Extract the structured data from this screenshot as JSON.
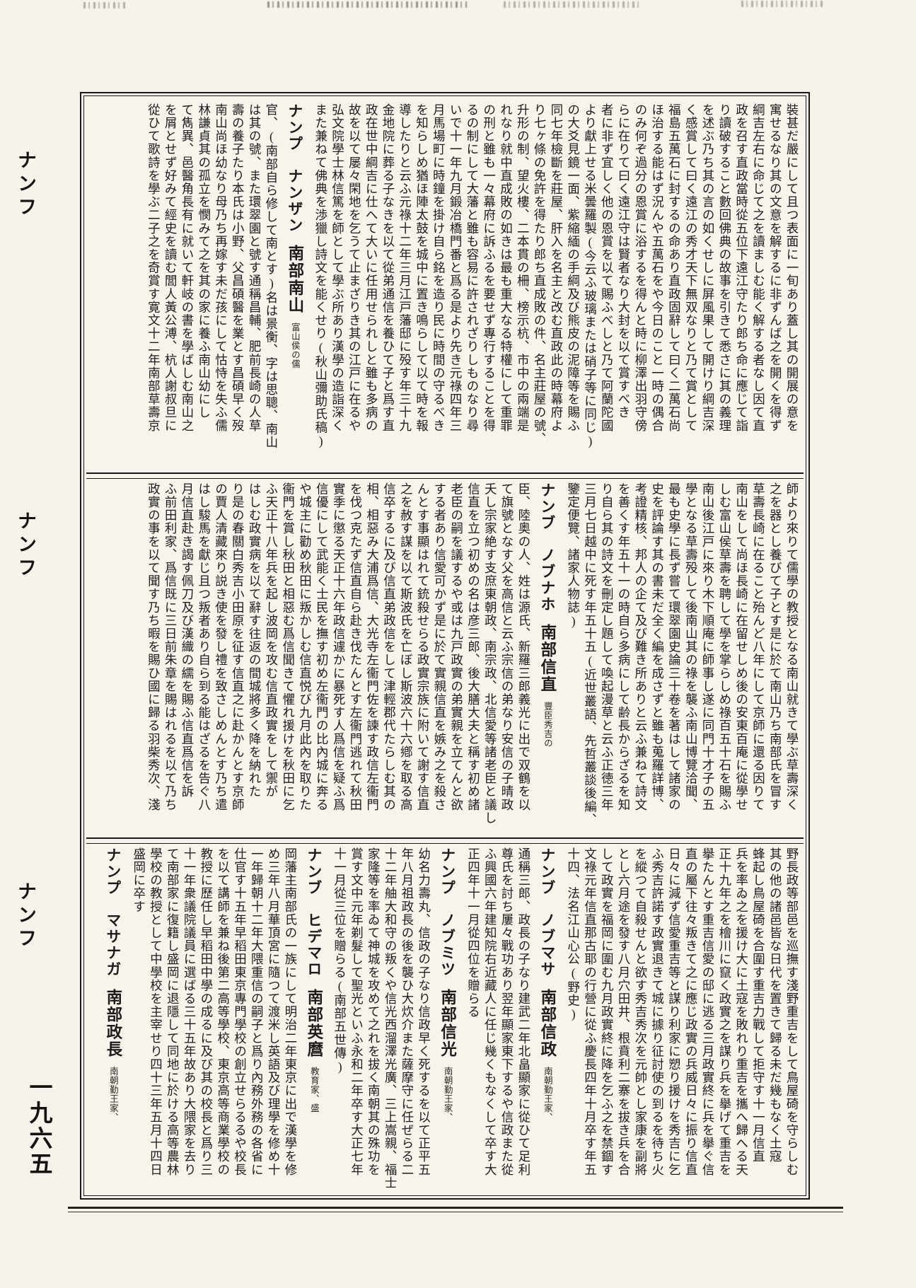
{
  "page": {
    "page_number": "一九六五",
    "margin_labels": [
      "ナンフ",
      "ナンフ",
      "ナンフ"
    ]
  },
  "sections": [
    {
      "columns": [
        {
          "type": "text",
          "text": "裝甚だ嚴にして且つ表面に一旬あり蓋し其の開展の意を"
        },
        {
          "type": "text",
          "text": "寓せるなり其の文意を解するに非ずんば之を開くを得ず"
        },
        {
          "type": "text",
          "text": "綱吉左右に命じて之を讀ましむ能く解する者なし因て直"
        },
        {
          "type": "text",
          "text": "政を召す直政當時從五位下遠江守たり郎ち命に應じて詣"
        },
        {
          "type": "text",
          "text": "り讀破すること數回佛典の故事を引きて悉さに其の義理"
        },
        {
          "type": "text",
          "text": "を述ぶ乃ち其の言の如くせしに屏風果して開けり綱吉深"
        },
        {
          "type": "text",
          "text": "く感賞して曰く遠江の秀才天下無双なりと乃て賞として"
        },
        {
          "type": "text",
          "text": "福島五萬石に封するの命あり直政固辭して曰く二萬石尚"
        },
        {
          "type": "text",
          "text": "ほ治する能はず況んや五萬石をや今日のこと一時の偶合"
        },
        {
          "type": "text",
          "text": "のみ何ぞ過分の恩賞に浴するを得んと時に柳澤出羽守傍"
        },
        {
          "type": "text",
          "text": "らに在りて曰く遠江守は賢者なり大封を以て賞すべき"
        },
        {
          "type": "text",
          "text": "者に非ず宜しく他の恩賞を以て賜ふべしと乃て阿蘭陀國"
        },
        {
          "type": "text",
          "text": "より獻上せる米曇羅製(今云ふ玻璃または硝子等に同じ)"
        },
        {
          "type": "text",
          "text": "の大爻見鏡一面、紫縮緬の手綱及び熊皮の泥障等を賜ふ"
        },
        {
          "type": "text",
          "text": "同七年檢斷を莊屋、肝入を名主と改む直政此の時幕府よ"
        },
        {
          "type": "text",
          "text": "り七ヶ條の免許を得たり郎ち直成敗の件、名主莊屋の號、"
        },
        {
          "type": "text",
          "text": "升形の制、望火樓、二本貫の柵、榜示杭、市中の兩端是"
        },
        {
          "type": "text",
          "text": "れなり就中直成敗の如きは最も重大なる特權にして重罪"
        },
        {
          "type": "text",
          "text": "の刑と雖も一々幕府に訴ふるを要せず專行することを得"
        },
        {
          "type": "text",
          "text": "るの制にして大藩と雖も容易に許されざりしものなり尋"
        },
        {
          "type": "text",
          "text": "いで十一年九月鍛冶橋門番と爲る是より先き元祿四年三"
        },
        {
          "type": "text",
          "text": "月馬場町に時鐘を掛け自ら銘を造り民に時間の守るべき"
        },
        {
          "type": "text",
          "text": "を知らしめ猶ほ陣太鼓を城中に置き鳴らして以て時を報"
        },
        {
          "type": "text",
          "text": "導したりと云ふ元祿十二年三月江戸藩邸に殁す年三十九"
        },
        {
          "type": "text",
          "text": "金地院に葬る子なきを以て從弟通信を養ひて子と爲す直"
        },
        {
          "type": "text",
          "text": "政在世中綱吉に仕へて大いに任用せられしと雖も多病の"
        },
        {
          "type": "text",
          "text": "故を以て屡々閑地を乞うて止まざりき其の江戸に在るや"
        },
        {
          "type": "text",
          "text": "弘文院學士林信篤を師として學ぶ所あり漢學の造詣深く"
        },
        {
          "type": "text",
          "text": "また兼ねて佛典を渉獵し詩文を能くせり(秋山彌助氏稿)"
        },
        {
          "type": "header",
          "reading": "ナンプ　ナンザン",
          "name": "南部南山",
          "descriptor": "富山侯の儒"
        },
        {
          "type": "text",
          "text": "官、(南部自ら修して南とす)名は景衡、字は思聰、南山"
        },
        {
          "type": "text",
          "text": "は其の號、また環翠園と號す通稱昌輔、肥前長崎の人草"
        },
        {
          "type": "text",
          "text": "壽の養子たり本氏は小野、父昌碩醫を業とす昌碩早く歿"
        },
        {
          "type": "text",
          "text": "南山尚ほ幼なり母乃ち再嫁す未だ孩にして怙恃を失ふ儒"
        },
        {
          "type": "text",
          "text": "林謙貞其の孤立を憫みて之を其の家に養ふ南山幼にし"
        },
        {
          "type": "text",
          "text": "て雋異、邑醫角長有に就いて軒岐の書を學ばしむ南山之"
        },
        {
          "type": "text",
          "text": "を屑とせず好みて經史を讀む閭人黃公溥、杭人謝叔旦に"
        },
        {
          "type": "text",
          "text": "從ひて歌詩を學ぶ二子之を奇賞す寛文十二年南部草壽京"
        }
      ]
    },
    {
      "columns": [
        {
          "type": "text",
          "text": "師より來りて儒學の教授となる南山就きて學ぶ草壽深く"
        },
        {
          "type": "text",
          "text": "之を器とし養びて子とす是に於て南山乃ち南部氏を冒す"
        },
        {
          "type": "text",
          "text": "草壽長崎に在ること殆んど八年にして京師に還る因りて"
        },
        {
          "type": "text",
          "text": "南山をして尚ほ長崎に在留せしめ後の安東百庵に從學せ"
        },
        {
          "type": "text",
          "text": "しむ富山侯草壽を聘して學を掌らしめ祿百五十石を賜ふ"
        },
        {
          "type": "text",
          "text": "南山後江戸に來り木下順庵に師事し遂に同門十才子の五"
        },
        {
          "type": "text",
          "text": "學となる草壽殁して後南山其の祿を襲ふ南山博覽洽聞、"
        },
        {
          "type": "text",
          "text": "最も史學に長ず嘗て環翠園史論三十卷を著はして諸家の"
        },
        {
          "type": "text",
          "text": "史を評論す其の書未だ全く編を成さずと雖も蒐羅詳博、"
        },
        {
          "type": "text",
          "text": "考證精核、邦人の企て及び難き所ありと云ふ兼ねて詩文"
        },
        {
          "type": "text",
          "text": "を善くす年五十一の時自ら多病にして齢長からざるを知"
        },
        {
          "type": "text",
          "text": "り自ら其の詩文を刪定し題して喚起漫草と云ふ正徳三年"
        },
        {
          "type": "text",
          "text": "三月七日越中に死す年五十五(近世叢語、先哲叢談後編、"
        },
        {
          "type": "text",
          "text": "鑒定便覽、諸家人物誌)",
          "short": true
        },
        {
          "type": "header",
          "reading": "ナンブ　ノブナホ",
          "name": "南部信直",
          "descriptor": "豐臣秀吉の"
        },
        {
          "type": "text",
          "text": "臣、陸奥の人、姓は源氏、新羅三郎義光に出で双鶴を以"
        },
        {
          "type": "text",
          "text": "て旗號となす父を高信と云ふ宗信の弟なり安信の子晴政"
        },
        {
          "type": "text",
          "text": "夭し宗家絶す支庶東朝政、南宗政、北信愛等諸老臣と議し"
        },
        {
          "type": "text",
          "text": "信直を立つ初めの名は彦三郎、後大膳大夫と稱す初め諸"
        },
        {
          "type": "text",
          "text": "老臣の嗣を議するや或は九戸政實の弟實親を立てんと欲"
        },
        {
          "type": "text",
          "text": "する者あり信愛可かず是に於て實親信直を嫉み之を殺さ"
        },
        {
          "type": "text",
          "text": "んとす事顯はれて銃殺せらる政實宗族に附いて謝す信直"
        },
        {
          "type": "text",
          "text": "之を赦す謀を以て斯波氏を亡ぼし斯波六十六鄕を取る高"
        },
        {
          "type": "text",
          "text": "信卒するに及び信直弟政信をして津輕郡代たらしむ其の"
        },
        {
          "type": "text",
          "text": "相、相惡み大浦爲信、大光寺左衞門佐を諫す政信左衞門"
        },
        {
          "type": "text",
          "text": "を伐つ克たず信直自ら赴き伐たんとす左衞門逃れて秋田"
        },
        {
          "type": "text",
          "text": "實季に懲る天正十六年政信遽かに暴死す人爲信を疑ふ爲"
        },
        {
          "type": "text",
          "text": "信優にして武能く士民を撫す初め左衞門の比內城に奔る"
        },
        {
          "type": "text",
          "text": "や城主に勸め秋田に叛かしむ信直悦び九月此內を取りた"
        },
        {
          "type": "text",
          "text": "衞門を賞し秋田と相惡む爲信聞きて懼れ援けを秋田に乞"
        },
        {
          "type": "text",
          "text": "ふ天正十八年兵を起し波岡を攻む信直政實をして禦が"
        },
        {
          "type": "text",
          "text": "はしむ政實病を以て辭す往返の間城將多く降を納れた"
        },
        {
          "type": "text",
          "text": "り是の春關白秀吉小田原を征す信直之に赴かんとす京師"
        },
        {
          "type": "text",
          "text": "の賈人清藏來り説き使を發し禮を致さしめんとす乃ち遣"
        },
        {
          "type": "text",
          "text": "はし駿馬を獻じ且つ叛者あり自ら到る能はざるを告ぐ八"
        },
        {
          "type": "text",
          "text": "月信直赴き謁す佩刀及び漢織の繻を賜ふ信直爲信を訴"
        },
        {
          "type": "text",
          "text": "ふ前田利家、爲信既に三日前朱章を賜はれるを以て乃ち"
        },
        {
          "type": "text",
          "text": "政實の事を以て聞す乃ち暇を賜ひ國に歸る羽柴秀次、淺"
        }
      ]
    },
    {
      "columns": [
        {
          "type": "text",
          "text": "野長政等部邑を巡撫す淺野重吉をして鳥屋碕を守らしむ"
        },
        {
          "type": "text",
          "text": "其の他の諸邑皆な日代を置きて歸る未だ幾もなく土寇"
        },
        {
          "type": "text",
          "text": "蜂起し鳥屋碕を合圍す重吉力戰して拒守す十一月信直"
        },
        {
          "type": "text",
          "text": "兵を率ゐ之を援け大に土寇を敗れり重吉を攜へ歸へる天"
        },
        {
          "type": "text",
          "text": "正十九年之を檜川に竄く政實之を謀り兵を擧げて重吉を"
        },
        {
          "type": "text",
          "text": "擧たんとす重吉信愛の邸に逃る三月政實終に兵を擧ぐ信"
        },
        {
          "type": "text",
          "text": "直の屬下往々叛きて之に應じ政實の兵威日々に振り信直"
        },
        {
          "type": "text",
          "text": "日々に減ず信愛重吉等と謀り利家に愬り援けを秀吉に乞"
        },
        {
          "type": "text",
          "text": "ふ秀吉許諾す政實退きて城に據り征討使の到るを待ち火"
        },
        {
          "type": "text",
          "text": "を縱つて自殺せんと欲す秀吉秀次を元帥とし家康を副將"
        },
        {
          "type": "text",
          "text": "とし六月途を發す八月穴田井、根賁利二寨を拔き兵を合"
        },
        {
          "type": "text",
          "text": "して政實を福岡に圍む九月政實終に降を乞ふ之を禁錮す"
        },
        {
          "type": "text",
          "text": "文祿元年信直那古耶の行營に從ふ慶長四年十月卒す年五"
        },
        {
          "type": "text",
          "text": "十四、法名江山心公(野史)",
          "short": true
        },
        {
          "type": "header",
          "reading": "ナンブ　ノブマサ",
          "name": "南部信政",
          "descriptor": "南朝勤王家、"
        },
        {
          "type": "text",
          "text": "通稱三郎、政長の子なり建武二年北畠顯家に從ひて足利"
        },
        {
          "type": "text",
          "text": "尊氏を討ち屢々戰功あり翌年顯家東下するや信政また從"
        },
        {
          "type": "text",
          "text": "ふ興國六年建知院右近藏人に任じ幾くもなくして卒す大"
        },
        {
          "type": "text",
          "text": "正四年十一月從四位を贈らる",
          "short": true
        },
        {
          "type": "header",
          "reading": "ナンプ　ノブミツ",
          "name": "南部信光",
          "descriptor": "南朝勤王家、"
        },
        {
          "type": "text",
          "text": "幼名力壽丸、信政の子なり信政早く死するを以て正平五"
        },
        {
          "type": "text",
          "text": "年八月祖政長の後を襲ひ大炊介また薩摩守に任ぜらる二"
        },
        {
          "type": "text",
          "text": "十二年舳大和守の叛くや信光西溜澤光廣、三上嵩親、福士"
        },
        {
          "type": "text",
          "text": "家隆等を率ゐて神城を攻めて之れを拔く南朝其の殊功を"
        },
        {
          "type": "text",
          "text": "賞す文中元年剃髮して聖光といふ永和二年卒す大正七年"
        },
        {
          "type": "text",
          "text": "十一月從三位を贈らる(南部五世傳)",
          "short": true
        },
        {
          "type": "header",
          "reading": "ナンブ　ヒデマロ",
          "name": "南部英麿",
          "descriptor": "教育家、盛"
        },
        {
          "type": "text",
          "text": "岡藩主南部氏の一族にして明治二年東京に出で漢學を修"
        },
        {
          "type": "text",
          "text": "め三年八月華頂宮に隨つて渡米し英語及び理學を修め十"
        },
        {
          "type": "text",
          "text": "一年歸朝十二年大隈重信の嗣子と爲り內務外務の各省に"
        },
        {
          "type": "text",
          "text": "仕官す十五年早稻田東京專門學校の創立せらるるや校長"
        },
        {
          "type": "text",
          "text": "を以て講師を兼ね後第二高等學校、東京高等商業學校の"
        },
        {
          "type": "text",
          "text": "教授に歷任し早稻田中學の成るに及び其の校長と爲り三"
        },
        {
          "type": "text",
          "text": "十一年衆議院議員に選ばる三十五年故あり大隈家を去り"
        },
        {
          "type": "text",
          "text": "て南部家に復籍し盛岡に退隱して同地に於ける高等農林"
        },
        {
          "type": "text",
          "text": "學校の教授として中學校を主宰せり四十三年五月十四日"
        },
        {
          "type": "text",
          "text": "盛岡に卒す",
          "short": true
        },
        {
          "type": "header",
          "reading": "ナンプ　マサナガ",
          "name": "南部政長",
          "descriptor": "南朝勤王家、"
        }
      ]
    }
  ]
}
